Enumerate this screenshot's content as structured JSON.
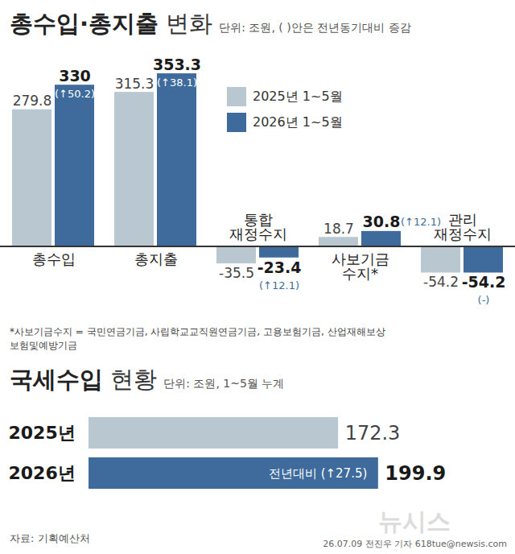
{
  "chart_data": [
    {
      "type": "bar",
      "title": "총수입·총지출 변화",
      "subtitle": "단위: 조원, ( )안은 전년동기대비 증감",
      "categories": [
        "총수입",
        "총지출",
        "통합 재정수지",
        "사보기금 수지*",
        "관리 재정수지"
      ],
      "series": [
        {
          "name": "2025년 1~5월",
          "color": "#b9c7d0",
          "values": [
            279.8,
            315.3,
            -35.5,
            18.7,
            -54.2
          ]
        },
        {
          "name": "2026년 1~5월",
          "color": "#3e6b9b",
          "values": [
            330,
            353.3,
            -23.4,
            30.8,
            -54.2
          ]
        }
      ],
      "annotations": [
        {
          "category": "총수입",
          "text": "(↑50.2)"
        },
        {
          "category": "총지출",
          "text": "(↑38.1)"
        },
        {
          "category": "통합 재정수지",
          "text": "(↑12.1)"
        },
        {
          "category": "사보기금 수지*",
          "text": "(↑12.1)"
        },
        {
          "category": "관리 재정수지",
          "text": "(-)"
        }
      ],
      "ylim": [
        -60,
        360
      ],
      "data_labels": true,
      "tick_labels": "x",
      "legend": "top"
    },
    {
      "type": "bar",
      "orientation": "horizontal",
      "title": "국세수입 현황",
      "subtitle": "단위: 조원, 1~5월 누계",
      "categories": [
        "2025년",
        "2026년"
      ],
      "values": [
        172.3,
        199.9
      ],
      "colors": [
        "#b9c7d0",
        "#3e6b9b"
      ],
      "annotations": [
        {
          "category": "2026년",
          "text": "전년대비 (↑27.5)"
        }
      ],
      "xlim": [
        0,
        250
      ],
      "data_labels": true,
      "tick_labels": "y"
    }
  ],
  "footnote": "*사보기금수지 = 국민연금기금, 사립학교교직원연금기금, 고용보험기금, 산업재해보상보험및예방기금",
  "source": "자료: 기획예산처",
  "credit": "26.07.09 전진우 기자 618tue@newsis.com",
  "watermark": "뉴시스"
}
